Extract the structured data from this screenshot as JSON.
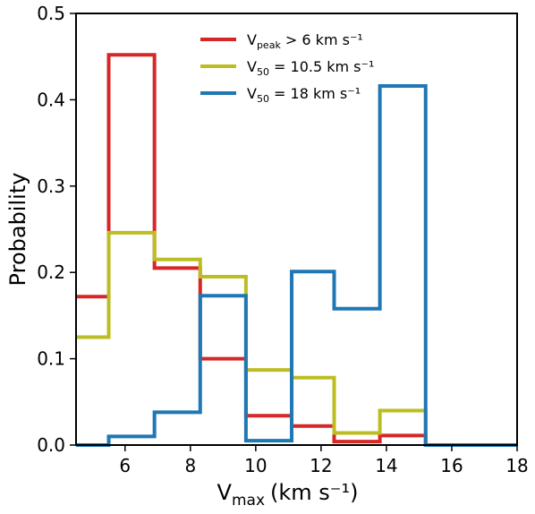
{
  "chart_data": {
    "type": "step-histogram",
    "xlabel": "V",
    "xlabel_sub": "max",
    "xlabel_unit": "(km s⁻¹)",
    "ylabel": "Probability",
    "xlim": [
      4.5,
      18
    ],
    "ylim": [
      0,
      0.5
    ],
    "xticks": [
      6,
      8,
      10,
      12,
      14,
      16,
      18
    ],
    "yticks": [
      0.0,
      0.1,
      0.2,
      0.3,
      0.4,
      0.5
    ],
    "ytick_labels": [
      "0.0",
      "0.1",
      "0.2",
      "0.3",
      "0.4",
      "0.5"
    ],
    "legend_placement": "top-center",
    "grid": false,
    "series": [
      {
        "legend_main": "V",
        "legend_sub": "peak",
        "legend_rest": " >  6 km s⁻¹",
        "color": "#d62728",
        "edges": [
          4.5,
          5.5,
          6.9,
          8.3,
          9.7,
          11.1,
          12.4,
          13.8,
          15.2,
          18
        ],
        "values": [
          0.172,
          0.452,
          0.205,
          0.1,
          0.034,
          0.022,
          0.004,
          0.011,
          0.0
        ]
      },
      {
        "legend_main": "V",
        "legend_sub": "50",
        "legend_rest": " = 10.5 km s⁻¹",
        "color": "#bcbd22",
        "edges": [
          4.5,
          5.5,
          6.9,
          8.3,
          9.7,
          11.1,
          12.4,
          13.8,
          15.2,
          18
        ],
        "values": [
          0.125,
          0.246,
          0.215,
          0.195,
          0.087,
          0.078,
          0.014,
          0.04,
          0.0
        ]
      },
      {
        "legend_main": "V",
        "legend_sub": "50",
        "legend_rest": " = 18 km s⁻¹",
        "color": "#1f77b4",
        "edges": [
          4.5,
          5.5,
          6.9,
          8.3,
          9.7,
          11.1,
          12.4,
          13.8,
          15.2,
          18
        ],
        "values": [
          0.0,
          0.01,
          0.038,
          0.173,
          0.005,
          0.201,
          0.158,
          0.416,
          0.0
        ]
      }
    ]
  }
}
